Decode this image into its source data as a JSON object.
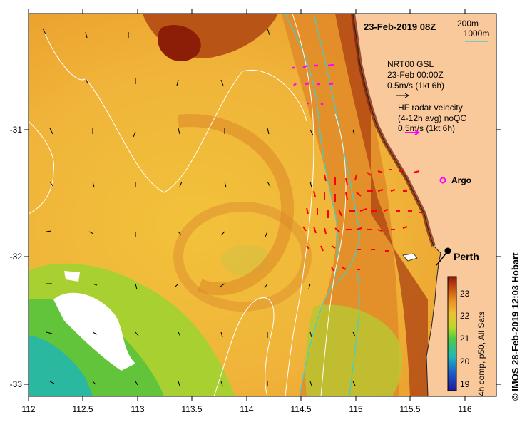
{
  "header": {
    "date_title": "23-Feb-2019 08Z",
    "contours": {
      "label_200m": "200m",
      "label_1000m": "1000m",
      "color_200m": "#3fcfcf",
      "color_1000m": "#ffffff"
    }
  },
  "legend": {
    "gsl_line1": "NRT00 GSL",
    "gsl_line2": "23-Feb 00:00Z",
    "gsl_line3": "0.5m/s (1kt 6h)",
    "hf_line1": "HF radar velocity",
    "hf_line2": "(4-12h avg) noQC",
    "hf_line3": "0.5m/s (1kt 6h)",
    "gsl_color": "#000000",
    "hf_color": "#ff00ff",
    "radar_color": "#ff0000"
  },
  "markers": {
    "argo_label": "Argo",
    "argo_color": "#ff00ff",
    "city_label": "Perth"
  },
  "axes": {
    "x_ticks": [
      "112",
      "112.5",
      "113",
      "113.5",
      "114",
      "114.5",
      "115",
      "115.5",
      "116"
    ],
    "y_ticks": [
      "-31",
      "-32",
      "-33"
    ]
  },
  "colorbar": {
    "ticks": [
      "23",
      "22",
      "21",
      "20",
      "19"
    ],
    "title": "4h comp, p50, All Sats"
  },
  "credit": "© IMOS 28-Feb-2019 12:03 Hobart",
  "colors": {
    "land": "#f9c89b",
    "cloud": "#ffffff"
  }
}
